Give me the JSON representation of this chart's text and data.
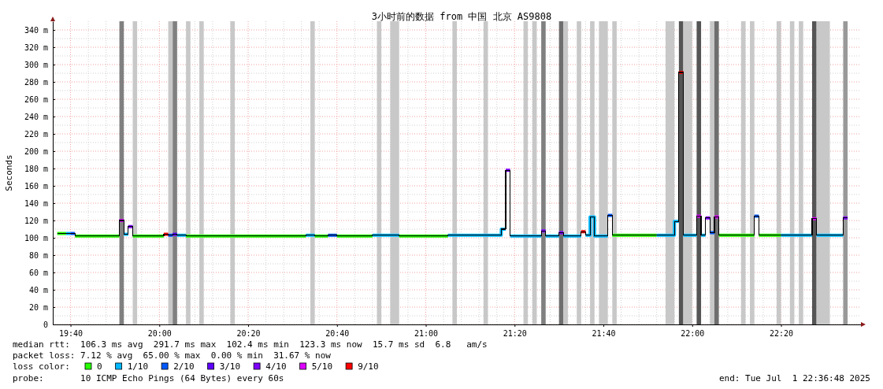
{
  "chart_data": {
    "type": "step",
    "title": "3小时前的数据 from 中国 北京 AS9808",
    "ylabel": "Seconds",
    "xlim": [
      "2025-07-01T19:36",
      "2025-07-01T22:38"
    ],
    "xticks": [
      {
        "value": "2025-07-01T19:40",
        "label": "19:40"
      },
      {
        "value": "2025-07-01T20:00",
        "label": "20:00"
      },
      {
        "value": "2025-07-01T20:20",
        "label": "20:20"
      },
      {
        "value": "2025-07-01T20:40",
        "label": "20:40"
      },
      {
        "value": "2025-07-01T21:00",
        "label": "21:00"
      },
      {
        "value": "2025-07-01T21:20",
        "label": "21:20"
      },
      {
        "value": "2025-07-01T21:40",
        "label": "21:40"
      },
      {
        "value": "2025-07-01T22:00",
        "label": "22:00"
      },
      {
        "value": "2025-07-01T22:20",
        "label": "22:20"
      }
    ],
    "ylim": [
      0,
      350
    ],
    "yticks": [
      0,
      {
        "value": 20,
        "label": "20 m"
      },
      {
        "value": 40,
        "label": "40 m"
      },
      {
        "value": 60,
        "label": "60 m"
      },
      {
        "value": 80,
        "label": "80 m"
      },
      {
        "value": 100,
        "label": "100 m"
      },
      {
        "value": 120,
        "label": "120 m"
      },
      {
        "value": 140,
        "label": "140 m"
      },
      {
        "value": 160,
        "label": "160 m"
      },
      {
        "value": 180,
        "label": "180 m"
      },
      {
        "value": 200,
        "label": "200 m"
      },
      {
        "value": 220,
        "label": "220 m"
      },
      {
        "value": 240,
        "label": "240 m"
      },
      {
        "value": 260,
        "label": "260 m"
      },
      {
        "value": 280,
        "label": "280 m"
      },
      {
        "value": 300,
        "label": "300 m"
      },
      {
        "value": 320,
        "label": "320 m"
      },
      {
        "value": 340,
        "label": "340 m"
      }
    ],
    "grid": true,
    "legend": "bottom left",
    "legend_title": "loss color:",
    "bands": [
      {
        "axis": "x",
        "from": "2025-07-01T19:51",
        "to": "2025-07-01T19:52",
        "color": "#808080"
      },
      {
        "axis": "x",
        "from": "2025-07-01T19:54",
        "to": "2025-07-01T19:55",
        "color": "#c8c8c8"
      },
      {
        "axis": "x",
        "from": "2025-07-01T20:02",
        "to": "2025-07-01T20:03",
        "color": "#c8c8c8"
      },
      {
        "axis": "x",
        "from": "2025-07-01T20:03",
        "to": "2025-07-01T20:04",
        "color": "#808080"
      },
      {
        "axis": "x",
        "from": "2025-07-01T20:06",
        "to": "2025-07-01T20:07",
        "color": "#c8c8c8"
      },
      {
        "axis": "x",
        "from": "2025-07-01T20:09",
        "to": "2025-07-01T20:10",
        "color": "#c8c8c8"
      },
      {
        "axis": "x",
        "from": "2025-07-01T20:16",
        "to": "2025-07-01T20:17",
        "color": "#c8c8c8"
      },
      {
        "axis": "x",
        "from": "2025-07-01T20:34",
        "to": "2025-07-01T20:35",
        "color": "#c8c8c8"
      },
      {
        "axis": "x",
        "from": "2025-07-01T20:49",
        "to": "2025-07-01T20:50",
        "color": "#c8c8c8"
      },
      {
        "axis": "x",
        "from": "2025-07-01T20:52",
        "to": "2025-07-01T20:54",
        "color": "#c8c8c8"
      },
      {
        "axis": "x",
        "from": "2025-07-01T21:06",
        "to": "2025-07-01T21:07",
        "color": "#c8c8c8"
      },
      {
        "axis": "x",
        "from": "2025-07-01T21:13",
        "to": "2025-07-01T21:14",
        "color": "#c8c8c8"
      },
      {
        "axis": "x",
        "from": "2025-07-01T21:22",
        "to": "2025-07-01T21:23",
        "color": "#c8c8c8"
      },
      {
        "axis": "x",
        "from": "2025-07-01T21:24",
        "to": "2025-07-01T21:25",
        "color": "#c8c8c8"
      },
      {
        "axis": "x",
        "from": "2025-07-01T21:26",
        "to": "2025-07-01T21:27",
        "color": "#808080"
      },
      {
        "axis": "x",
        "from": "2025-07-01T21:30",
        "to": "2025-07-01T21:31",
        "color": "#6e6e6e"
      },
      {
        "axis": "x",
        "from": "2025-07-01T21:31",
        "to": "2025-07-01T21:32",
        "color": "#c8c8c8"
      },
      {
        "axis": "x",
        "from": "2025-07-01T21:34",
        "to": "2025-07-01T21:35",
        "color": "#c8c8c8"
      },
      {
        "axis": "x",
        "from": "2025-07-01T21:37",
        "to": "2025-07-01T21:38",
        "color": "#c8c8c8"
      },
      {
        "axis": "x",
        "from": "2025-07-01T21:39",
        "to": "2025-07-01T21:41",
        "color": "#c8c8c8"
      },
      {
        "axis": "x",
        "from": "2025-07-01T21:42",
        "to": "2025-07-01T21:43",
        "color": "#c8c8c8"
      },
      {
        "axis": "x",
        "from": "2025-07-01T21:54",
        "to": "2025-07-01T21:56",
        "color": "#c8c8c8"
      },
      {
        "axis": "x",
        "from": "2025-07-01T21:57",
        "to": "2025-07-01T21:58",
        "color": "#555555"
      },
      {
        "axis": "x",
        "from": "2025-07-01T21:58",
        "to": "2025-07-01T22:00",
        "color": "#c8c8c8"
      },
      {
        "axis": "x",
        "from": "2025-07-01T22:01",
        "to": "2025-07-01T22:02",
        "color": "#555555"
      },
      {
        "axis": "x",
        "from": "2025-07-01T22:04",
        "to": "2025-07-01T22:05",
        "color": "#c8c8c8"
      },
      {
        "axis": "x",
        "from": "2025-07-01T22:05",
        "to": "2025-07-01T22:06",
        "color": "#6e6e6e"
      },
      {
        "axis": "x",
        "from": "2025-07-01T22:11",
        "to": "2025-07-01T22:12",
        "color": "#c8c8c8"
      },
      {
        "axis": "x",
        "from": "2025-07-01T22:13",
        "to": "2025-07-01T22:14",
        "color": "#c8c8c8"
      },
      {
        "axis": "x",
        "from": "2025-07-01T22:19",
        "to": "2025-07-01T22:20",
        "color": "#c8c8c8"
      },
      {
        "axis": "x",
        "from": "2025-07-01T22:22",
        "to": "2025-07-01T22:23",
        "color": "#c8c8c8"
      },
      {
        "axis": "x",
        "from": "2025-07-01T22:24",
        "to": "2025-07-01T22:25",
        "color": "#c8c8c8"
      },
      {
        "axis": "x",
        "from": "2025-07-01T22:27",
        "to": "2025-07-01T22:28",
        "color": "#555555"
      },
      {
        "axis": "x",
        "from": "2025-07-01T22:28",
        "to": "2025-07-01T22:31",
        "color": "#c8c8c8"
      },
      {
        "axis": "x",
        "from": "2025-07-01T22:34",
        "to": "2025-07-01T22:35",
        "color": "#999999"
      }
    ],
    "series": [
      {
        "color": "#000000",
        "x": [
          "2025-07-01T19:37",
          "2025-07-01T19:41",
          "2025-07-01T19:51",
          "2025-07-01T19:52",
          "2025-07-01T19:53",
          "2025-07-01T19:54",
          "2025-07-01T20:01",
          "2025-07-01T20:02",
          "2025-07-01T20:03",
          "2025-07-01T20:04",
          "2025-07-01T20:06",
          "2025-07-01T20:33",
          "2025-07-01T20:35",
          "2025-07-01T20:38",
          "2025-07-01T20:40",
          "2025-07-01T20:48",
          "2025-07-01T20:54",
          "2025-07-01T21:05",
          "2025-07-01T21:17",
          "2025-07-01T21:18",
          "2025-07-01T21:19",
          "2025-07-01T21:26",
          "2025-07-01T21:27",
          "2025-07-01T21:30",
          "2025-07-01T21:31",
          "2025-07-01T21:35",
          "2025-07-01T21:36",
          "2025-07-01T21:37",
          "2025-07-01T21:38",
          "2025-07-01T21:41",
          "2025-07-01T21:42",
          "2025-07-01T21:56",
          "2025-07-01T21:57",
          "2025-07-01T21:58",
          "2025-07-01T22:01",
          "2025-07-01T22:02",
          "2025-07-01T22:03",
          "2025-07-01T22:04",
          "2025-07-01T22:05",
          "2025-07-01T22:06",
          "2025-07-01T22:14",
          "2025-07-01T22:15",
          "2025-07-01T22:27",
          "2025-07-01T22:28",
          "2025-07-01T22:34",
          "2025-07-01T22:35"
        ],
        "values": [
          105,
          102,
          120,
          104,
          113,
          102,
          104,
          103,
          104,
          103,
          102,
          103,
          102,
          103,
          102,
          103,
          102,
          103,
          110,
          178,
          102,
          108,
          102,
          106,
          102,
          107,
          103,
          124,
          102,
          126,
          103,
          119,
          291,
          103,
          125,
          103,
          123,
          106,
          124,
          103,
          125,
          103,
          122,
          103,
          123,
          123
        ]
      },
      {
        "name": "0",
        "color": "#26ff00",
        "x": [
          "2025-07-01T19:37",
          "2025-07-01T19:39",
          "2025-07-01T19:41",
          "2025-07-01T19:51",
          "2025-07-01T19:54",
          "2025-07-01T20:01",
          "2025-07-01T20:06",
          "2025-07-01T20:33",
          "2025-07-01T20:35",
          "2025-07-01T20:38",
          "2025-07-01T20:40",
          "2025-07-01T20:48",
          "2025-07-01T20:54",
          "2025-07-01T21:05",
          "2025-07-01T21:42",
          "2025-07-01T21:52",
          "2025-07-01T22:06",
          "2025-07-01T22:14",
          "2025-07-01T22:15",
          "2025-07-01T22:20"
        ],
        "values": [
          105,
          null,
          102,
          null,
          102,
          null,
          102,
          null,
          102,
          null,
          102,
          null,
          102,
          null,
          103,
          null,
          103,
          null,
          103,
          103
        ]
      },
      {
        "name": "1/10",
        "color": "#00b8ff",
        "x": [
          "2025-07-01T19:39",
          "2025-07-01T19:40",
          "2025-07-01T19:52",
          "2025-07-01T19:53",
          "2025-07-01T20:04",
          "2025-07-01T20:06",
          "2025-07-01T20:33",
          "2025-07-01T20:35",
          "2025-07-01T20:48",
          "2025-07-01T20:54",
          "2025-07-01T21:05",
          "2025-07-01T21:17",
          "2025-07-01T21:18",
          "2025-07-01T21:19",
          "2025-07-01T21:26",
          "2025-07-01T21:27",
          "2025-07-01T21:30",
          "2025-07-01T21:31",
          "2025-07-01T21:35",
          "2025-07-01T21:36",
          "2025-07-01T21:37",
          "2025-07-01T21:38",
          "2025-07-01T21:41",
          "2025-07-01T21:52",
          "2025-07-01T21:56",
          "2025-07-01T21:57",
          "2025-07-01T21:58",
          "2025-07-01T22:01",
          "2025-07-01T22:02",
          "2025-07-01T22:03",
          "2025-07-01T22:20",
          "2025-07-01T22:27",
          "2025-07-01T22:28",
          "2025-07-01T22:34"
        ],
        "values": [
          105,
          null,
          104,
          null,
          103,
          null,
          103,
          null,
          103,
          null,
          103,
          110,
          null,
          102,
          null,
          102,
          null,
          102,
          null,
          103,
          124,
          102,
          null,
          103,
          119,
          null,
          103,
          null,
          103,
          null,
          103,
          null,
          103,
          103
        ]
      },
      {
        "name": "2/10",
        "color": "#0059ff",
        "x": [
          "2025-07-01T19:40",
          "2025-07-01T19:41",
          "2025-07-01T20:02",
          "2025-07-01T20:03",
          "2025-07-01T20:38",
          "2025-07-01T20:40",
          "2025-07-01T21:41",
          "2025-07-01T21:42",
          "2025-07-01T22:04",
          "2025-07-01T22:05",
          "2025-07-01T22:14",
          "2025-07-01T22:15"
        ],
        "values": [
          105,
          null,
          103,
          null,
          103,
          null,
          126,
          null,
          106,
          null,
          125,
          125
        ]
      },
      {
        "name": "3/10",
        "color": "#5e00ff",
        "x": [
          "2025-07-01T20:03",
          "2025-07-01T20:04"
        ],
        "values": [
          104,
          104
        ]
      },
      {
        "name": "4/10",
        "color": "#7e00ff",
        "x": [
          "2025-07-01T19:53",
          "2025-07-01T19:54",
          "2025-07-01T21:18",
          "2025-07-01T21:19",
          "2025-07-01T21:26",
          "2025-07-01T21:27",
          "2025-07-01T21:30",
          "2025-07-01T21:31",
          "2025-07-01T22:03",
          "2025-07-01T22:04",
          "2025-07-01T22:34",
          "2025-07-01T22:35"
        ],
        "values": [
          113,
          null,
          178,
          null,
          108,
          null,
          106,
          null,
          123,
          null,
          123,
          123
        ]
      },
      {
        "name": "5/10",
        "color": "#dd00ff",
        "x": [
          "2025-07-01T19:51",
          "2025-07-01T19:52",
          "2025-07-01T22:01",
          "2025-07-01T22:02",
          "2025-07-01T22:05",
          "2025-07-01T22:06",
          "2025-07-01T22:27",
          "2025-07-01T22:28"
        ],
        "values": [
          120,
          null,
          125,
          null,
          124,
          null,
          122,
          122
        ]
      },
      {
        "name": "9/10",
        "color": "#ff0000",
        "x": [
          "2025-07-01T20:01",
          "2025-07-01T20:02",
          "2025-07-01T21:35",
          "2025-07-01T21:36",
          "2025-07-01T21:57",
          "2025-07-01T21:58"
        ],
        "values": [
          104,
          null,
          107,
          null,
          291,
          291
        ]
      }
    ],
    "annotations": [
      "median rtt:  106.3 ms avg  291.7 ms max  102.4 ms min  123.3 ms now  15.7 ms sd  6.8   am/s",
      "packet loss: 7.12 % avg  65.00 % max  0.00 % min  31.67 % now",
      "probe:       10 ICMP Echo Pings (64 Bytes) every 60s",
      "end: Tue Jul  1 22:36:48 2025"
    ]
  }
}
